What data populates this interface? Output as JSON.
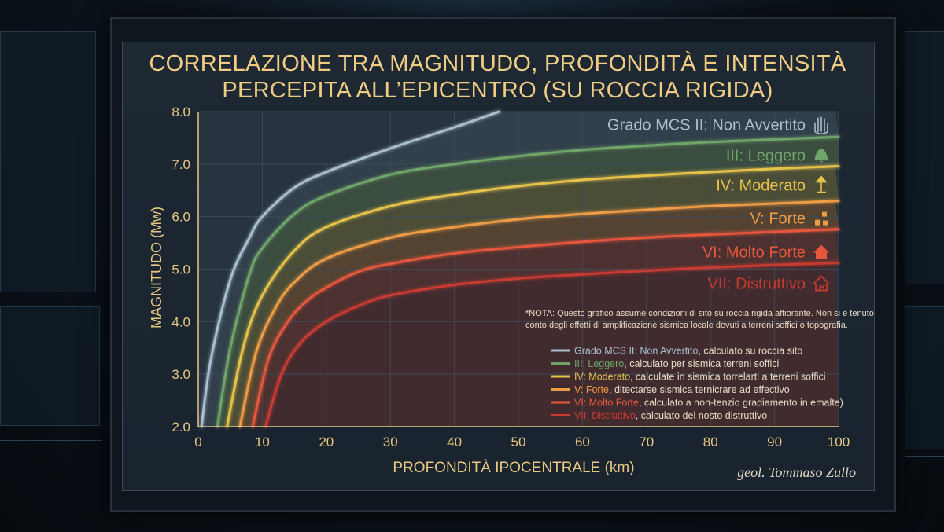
{
  "title_line1": "CORRELAZIONE TRA MAGNITUDO, PROFONDITÀ E INTENSITÀ",
  "title_line2": "PERCEPITA ALL’EPICENTRO (SU ROCCIA RIGIDA)",
  "signature": "geol. Tommaso Zullo",
  "note_line1": "*NOTA: Questo grafico assume condizioni di sito su roccia rigida affiorante. Non si è tenuto",
  "note_line2": "conto degli effetti di amplificazione sismica locale dovuti a terreni soffici o topografia.",
  "colors": {
    "title": "#f1cd84",
    "axis": "#e7c782",
    "plot_bg": "#27333f",
    "grid": "#3c4a58"
  },
  "chart_data": {
    "type": "line",
    "title": "CORRELAZIONE TRA MAGNITUDO, PROFONDITÀ E INTENSITÀ PERCEPITA ALL’EPICENTRO (SU ROCCIA RIGIDA)",
    "xlabel": "PROFONDITÀ IPOCENTRALE (km)",
    "ylabel": "MAGNITUDO (Mw)",
    "xlim": [
      0,
      100
    ],
    "ylim": [
      2.0,
      8.0
    ],
    "xticks": [
      "0",
      "10",
      "20",
      "30",
      "40",
      "50",
      "60",
      "70",
      "80",
      "90",
      "100"
    ],
    "yticks": [
      "2.0",
      "3.0",
      "4.0",
      "5.0",
      "6.0",
      "7.0",
      "8.0"
    ],
    "grid": true,
    "legend_position": "bottom-right",
    "series": [
      {
        "name": "Grado MCS II: Non Avvertito",
        "legend_rest": ", calculato su roccia sito",
        "color": "#a9bfd0",
        "icon": "hand-icon",
        "x": [
          0.5,
          2,
          5,
          8,
          10,
          15,
          20,
          30,
          40,
          47
        ],
        "y": [
          2.0,
          3.3,
          4.8,
          5.6,
          6.0,
          6.55,
          6.85,
          7.3,
          7.7,
          8.0
        ]
      },
      {
        "name": "III: Leggero",
        "legend_rest": ", calculato per sismica terreni soffici",
        "color": "#6fa56a",
        "icon": "bell-icon",
        "x": [
          3,
          5,
          8,
          10,
          15,
          20,
          30,
          40,
          50,
          60,
          70,
          80,
          90,
          100
        ],
        "y": [
          2.0,
          3.5,
          4.9,
          5.4,
          6.05,
          6.4,
          6.8,
          7.0,
          7.15,
          7.27,
          7.35,
          7.42,
          7.47,
          7.52
        ]
      },
      {
        "name": "IV: Moderato",
        "legend_rest": ", calculate in sismica torrelarti a terreni soffici",
        "color": "#e6c24c",
        "icon": "lamp-icon",
        "x": [
          4.5,
          7,
          10,
          15,
          20,
          30,
          40,
          50,
          60,
          70,
          80,
          90,
          100
        ],
        "y": [
          2.0,
          3.5,
          4.5,
          5.35,
          5.8,
          6.2,
          6.42,
          6.58,
          6.7,
          6.78,
          6.85,
          6.91,
          6.96
        ]
      },
      {
        "name": "V: Forte",
        "legend_rest": ", ditectarse sismica ternicrare ad effectivo",
        "color": "#ee9b45",
        "icon": "objects-icon",
        "x": [
          6.5,
          9,
          12,
          15,
          20,
          30,
          40,
          50,
          60,
          70,
          80,
          90,
          100
        ],
        "y": [
          2.0,
          3.4,
          4.25,
          4.75,
          5.2,
          5.6,
          5.8,
          5.95,
          6.05,
          6.13,
          6.2,
          6.25,
          6.3
        ]
      },
      {
        "name": "VI: Molto Forte",
        "legend_rest": ", calculato a non-tenzio gradiamento in emalte)",
        "color": "#e5573c",
        "icon": "house-icon",
        "x": [
          8.5,
          11,
          14,
          17,
          20,
          25,
          30,
          40,
          50,
          60,
          70,
          80,
          90,
          100
        ],
        "y": [
          2.0,
          3.3,
          4.0,
          4.4,
          4.65,
          4.95,
          5.1,
          5.3,
          5.42,
          5.52,
          5.6,
          5.66,
          5.71,
          5.76
        ]
      },
      {
        "name": "VII: Distruttivo",
        "legend_rest": ", calculato del nosto distruttivo",
        "color": "#c83a30",
        "icon": "ruined-house-icon",
        "x": [
          10.5,
          13,
          16,
          20,
          25,
          30,
          40,
          50,
          60,
          70,
          80,
          90,
          100
        ],
        "y": [
          2.0,
          3.0,
          3.6,
          4.0,
          4.3,
          4.5,
          4.7,
          4.82,
          4.9,
          4.97,
          5.03,
          5.08,
          5.12
        ]
      }
    ],
    "curve_labels_y": [
      7.75,
      7.17,
      6.6,
      5.97,
      5.33,
      4.73
    ]
  }
}
